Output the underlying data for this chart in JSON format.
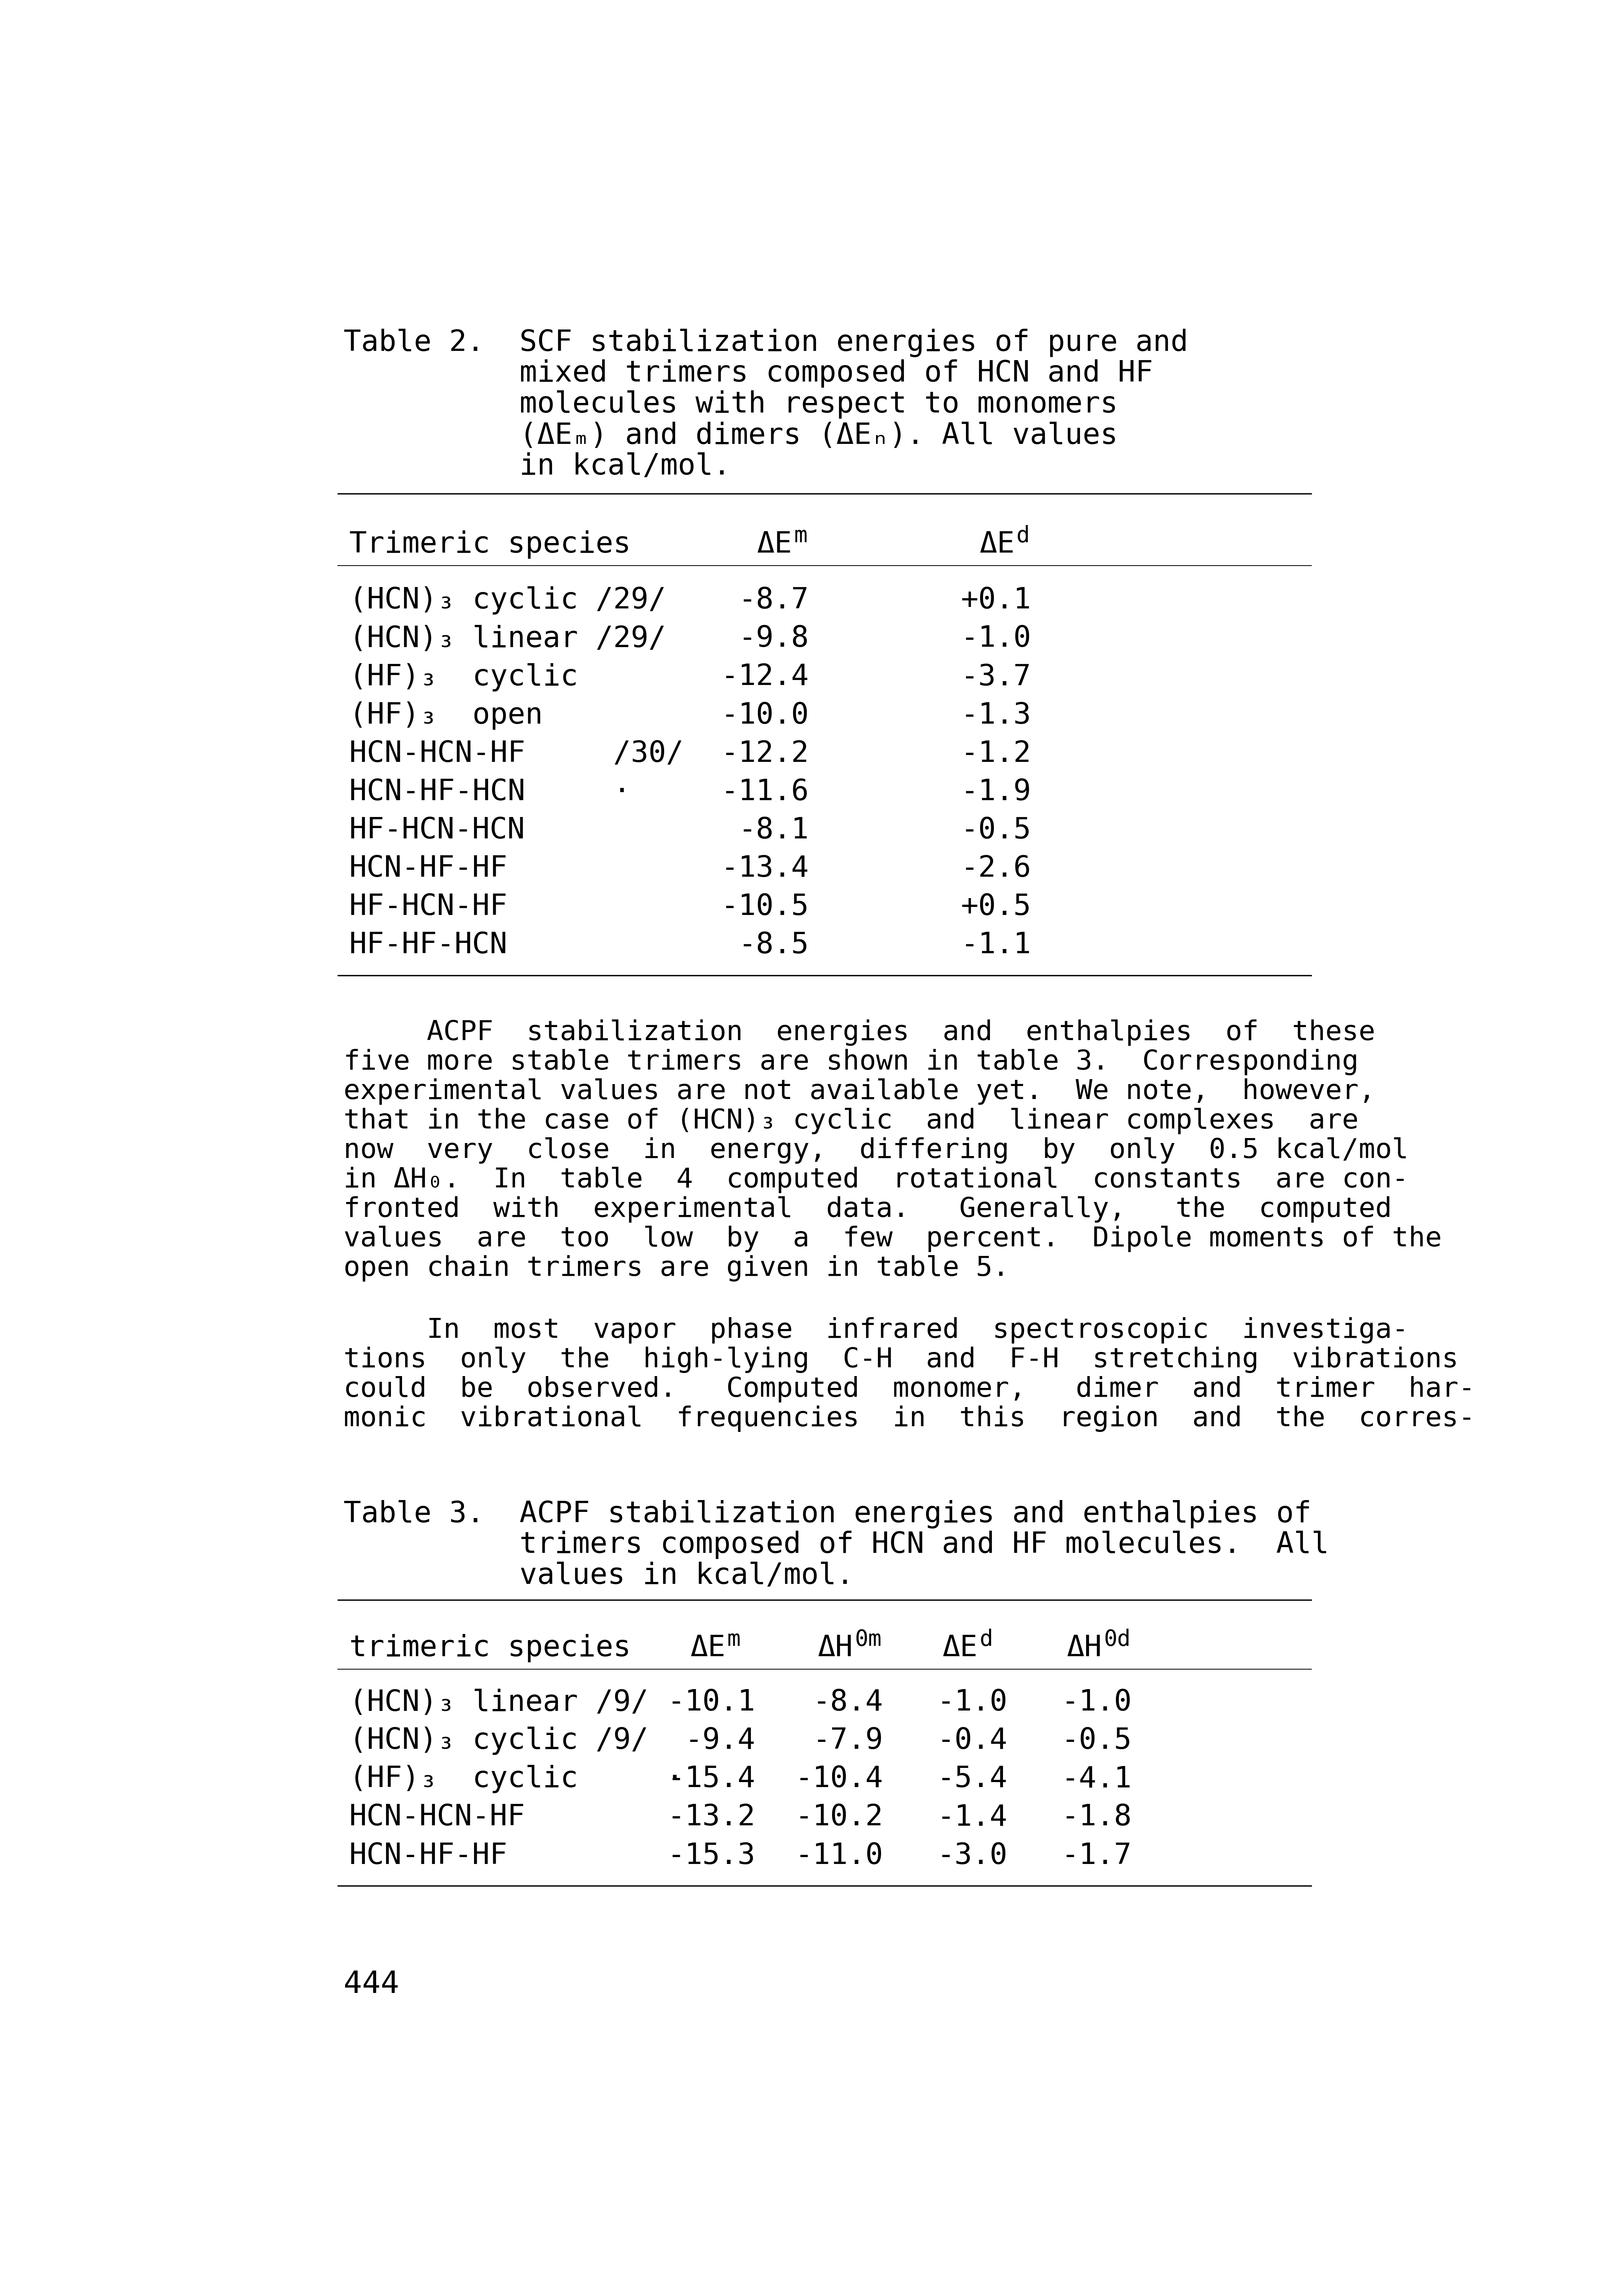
{
  "bg_color": "#ffffff",
  "page_width": 42.06,
  "page_height": 60.0,
  "table2_title_lines": [
    "Table 2.  SCF stabilization energies of pure and",
    "          mixed trimers composed of HCN and HF",
    "          molecules with respect to monomers",
    "          (ΔEₘ) and dimers (ΔEₙ). All values",
    "          in kcal/mol."
  ],
  "table2_rows": [
    [
      "(HCN)₃ cyclic /29/",
      "-8.7",
      "+0.1"
    ],
    [
      "(HCN)₃ linear /29/",
      "-9.8",
      "-1.0"
    ],
    [
      "(HF)₃  cyclic",
      "-12.4",
      "-3.7"
    ],
    [
      "(HF)₃  open",
      "-10.0",
      "-1.3"
    ],
    [
      "HCN-HCN-HF     /30/",
      "-12.2",
      "-1.2"
    ],
    [
      "HCN-HF-HCN     ·",
      "-11.6",
      "-1.9"
    ],
    [
      "HF-HCN-HCN",
      "-8.1",
      "-0.5"
    ],
    [
      "HCN-HF-HF",
      "-13.4",
      "-2.6"
    ],
    [
      "HF-HCN-HF",
      "-10.5",
      "+0.5"
    ],
    [
      "HF-HF-HCN",
      "-8.5",
      "-1.1"
    ]
  ],
  "para1_lines": [
    "     ACPF  stabilization  energies  and  enthalpies  of  these",
    "five more stable trimers are shown in table 3.  Corresponding",
    "experimental values are not available yet.  We note,  however,",
    "that in the case of (HCN)₃ cyclic  and  linear complexes  are",
    "now  very  close  in  energy,  differing  by  only  0.5 kcal/mol",
    "in ΔH₀.  In  table  4  computed  rotational  constants  are con-",
    "fronted  with  experimental  data.   Generally,   the  computed",
    "values  are  too  low  by  a  few  percent.  Dipole moments of the",
    "open chain trimers are given in table 5."
  ],
  "para2_lines": [
    "     In  most  vapor  phase  infrared  spectroscopic  investiga-",
    "tions  only  the  high-lying  C-H  and  F-H  stretching  vibrations",
    "could  be  observed.   Computed  monomer,   dimer  and  trimer  har-",
    "monic  vibrational  frequencies  in  this  region  and  the  corres-"
  ],
  "table3_title_lines": [
    "Table 3.  ACPF stabilization energies and enthalpies of",
    "          trimers composed of HCN and HF molecules.  All",
    "          values in kcal/mol."
  ],
  "table3_rows": [
    [
      "(HCN)₃ linear /9/",
      "-10.1",
      "-8.4",
      "-1.0",
      "-1.0"
    ],
    [
      "(HCN)₃ cyclic /9/",
      "-9.4",
      "-7.9",
      "-0.4",
      "-0.5"
    ],
    [
      "(HF)₃  cyclic     ·",
      "-15.4",
      "-10.4",
      "-5.4",
      "-4.1"
    ],
    [
      "HCN-HCN-HF",
      "-13.2",
      "-10.2",
      "-1.4",
      "-1.8"
    ],
    [
      "HCN-HF-HF",
      "-15.3",
      "-11.0",
      "-3.0",
      "-1.7"
    ]
  ],
  "page_number": "444",
  "fs_title": 55,
  "fs_table": 55,
  "fs_body": 52,
  "fs_sub": 42,
  "fs_page": 58
}
